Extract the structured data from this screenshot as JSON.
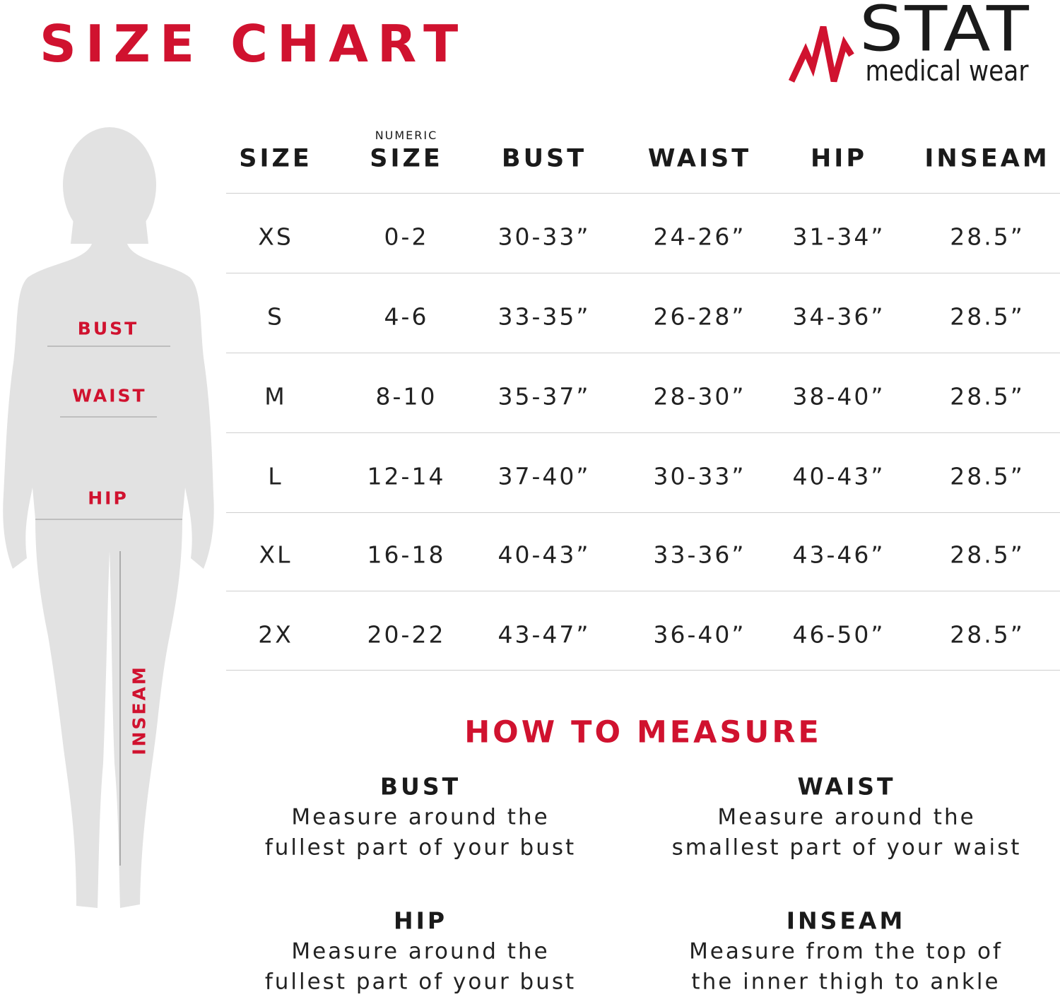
{
  "header": {
    "title": "SIZE CHART",
    "logo": {
      "brand": "STAT",
      "tagline": "medical wear"
    }
  },
  "figure": {
    "labels": [
      "BUST",
      "WAIST",
      "HIP",
      "INSEAM"
    ]
  },
  "table": {
    "header": [
      {
        "label": "SIZE"
      },
      {
        "overline": "NUMERIC",
        "label": "SIZE"
      },
      {
        "label": "BUST"
      },
      {
        "label": "WAIST"
      },
      {
        "label": "HIP"
      },
      {
        "label": "INSEAM"
      }
    ],
    "rows": [
      [
        "XS",
        "0-2",
        "30-33”",
        "24-26”",
        "31-34”",
        "28.5”"
      ],
      [
        "S",
        "4-6",
        "33-35”",
        "26-28”",
        "34-36”",
        "28.5”"
      ],
      [
        "M",
        "8-10",
        "35-37”",
        "28-30”",
        "38-40”",
        "28.5”"
      ],
      [
        "L",
        "12-14",
        "37-40”",
        "30-33”",
        "40-43”",
        "28.5”"
      ],
      [
        "XL",
        "16-18",
        "40-43”",
        "33-36”",
        "43-46”",
        "28.5”"
      ],
      [
        "2X",
        "20-22",
        "43-47”",
        "36-40”",
        "46-50”",
        "28.5”"
      ]
    ]
  },
  "how_to_measure": {
    "title": "HOW TO MEASURE",
    "items": [
      {
        "heading": "BUST",
        "lines": [
          "Measure around the",
          "fullest part of your bust"
        ]
      },
      {
        "heading": "WAIST",
        "lines": [
          "Measure around the",
          "smallest part of your waist"
        ]
      },
      {
        "heading": "HIP",
        "lines": [
          "Measure around the",
          "fullest part of your bust"
        ]
      },
      {
        "heading": "INSEAM",
        "lines": [
          "Measure from the top of",
          "the inner thigh to ankle"
        ]
      }
    ]
  }
}
